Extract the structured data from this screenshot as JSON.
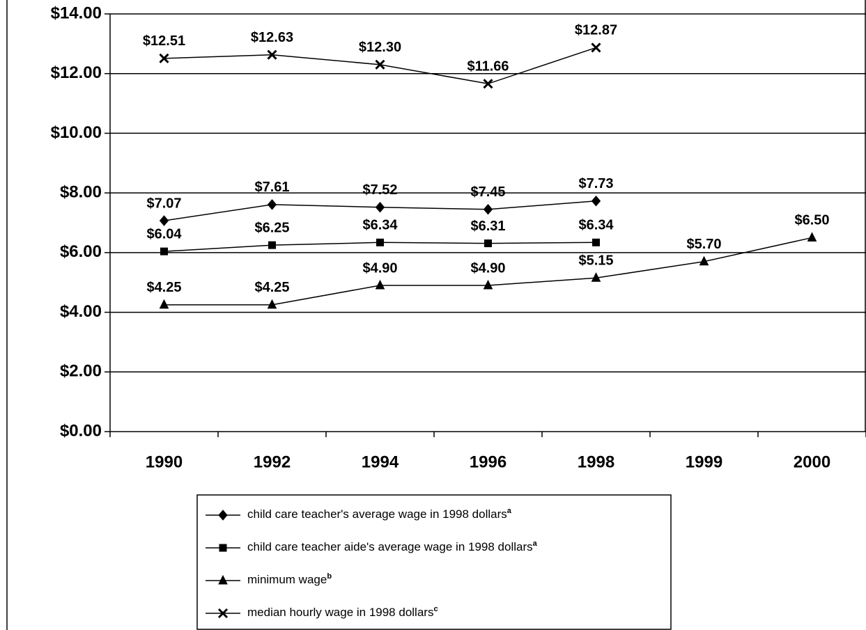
{
  "chart_data": {
    "type": "line",
    "categories": [
      "1990",
      "1992",
      "1994",
      "1996",
      "1998",
      "1999",
      "2000"
    ],
    "series": [
      {
        "name": "child care teacher's average wage in 1998 dollars",
        "footnote": "a",
        "color": "#000000",
        "marker": "diamond",
        "values": [
          7.07,
          7.61,
          7.52,
          7.45,
          7.73,
          null,
          null
        ],
        "value_labels": [
          "$7.07",
          "$7.61",
          "$7.52",
          "$7.45",
          "$7.73",
          null,
          null
        ]
      },
      {
        "name": "child care teacher aide's average wage in 1998 dollars",
        "footnote": "a",
        "color": "#000000",
        "marker": "square",
        "values": [
          6.04,
          6.25,
          6.34,
          6.31,
          6.34,
          null,
          null
        ],
        "value_labels": [
          "$6.04",
          "$6.25",
          "$6.34",
          "$6.31",
          "$6.34",
          null,
          null
        ]
      },
      {
        "name": "minimum wage",
        "footnote": "b",
        "color": "#000000",
        "marker": "triangle",
        "values": [
          4.25,
          4.25,
          4.9,
          4.9,
          5.15,
          5.7,
          6.5
        ],
        "value_labels": [
          "$4.25",
          "$4.25",
          "$4.90",
          "$4.90",
          "$5.15",
          "$5.70",
          "$6.50"
        ]
      },
      {
        "name": "median hourly wage in 1998 dollars",
        "footnote": "c",
        "color": "#000000",
        "marker": "x",
        "values": [
          12.51,
          12.63,
          12.3,
          11.66,
          12.87,
          null,
          null
        ],
        "value_labels": [
          "$12.51",
          "$12.63",
          "$12.30",
          "$11.66",
          "$12.87",
          null,
          null
        ]
      }
    ],
    "ylim": [
      0,
      14
    ],
    "yticks": [
      {
        "value": 0,
        "label": "$0.00"
      },
      {
        "value": 2,
        "label": "$2.00"
      },
      {
        "value": 4,
        "label": "$4.00"
      },
      {
        "value": 6,
        "label": "$6.00"
      },
      {
        "value": 8,
        "label": "$8.00"
      },
      {
        "value": 10,
        "label": "$10.00"
      },
      {
        "value": 12,
        "label": "$12.00"
      },
      {
        "value": 14,
        "label": "$14.00"
      }
    ],
    "grid": true,
    "legend": "bottom"
  }
}
